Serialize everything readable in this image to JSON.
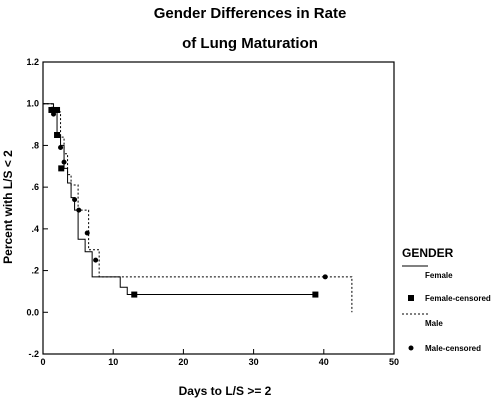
{
  "chart_data": {
    "type": "line",
    "title": "Gender Differences in Rate",
    "subtitle": "of Lung Maturation",
    "xlabel": "Days to L/S >= 2",
    "ylabel": "Percent with L/S < 2",
    "xlim": [
      0,
      50
    ],
    "ylim": [
      -0.2,
      1.2
    ],
    "xticks": [
      0,
      10,
      20,
      30,
      40,
      50
    ],
    "xtick_labels": [
      "0",
      "10",
      "20",
      "30",
      "40",
      "50"
    ],
    "yticks": [
      -0.2,
      0,
      0.2,
      0.4,
      0.6,
      0.8,
      1.0,
      1.2
    ],
    "ytick_labels": [
      "-.2",
      "0.0",
      ".2",
      ".4",
      ".6",
      ".8",
      "1.0",
      "1.2"
    ],
    "grid": false,
    "legend_position": "right",
    "legend_title": "GENDER",
    "series": [
      {
        "name": "Female",
        "style": "solid",
        "steps": [
          [
            0,
            1.0
          ],
          [
            1.5,
            0.96
          ],
          [
            2,
            0.85
          ],
          [
            2.5,
            0.8
          ],
          [
            3,
            0.69
          ],
          [
            3.5,
            0.62
          ],
          [
            4,
            0.55
          ],
          [
            4.5,
            0.49
          ],
          [
            5,
            0.35
          ],
          [
            6,
            0.29
          ],
          [
            7,
            0.17
          ],
          [
            11,
            0.12
          ],
          [
            12,
            0.085
          ],
          [
            39,
            0.085
          ]
        ]
      },
      {
        "name": "Female-censored",
        "marker": "square",
        "points": [
          [
            1.2,
            0.97
          ],
          [
            2.0,
            0.97
          ],
          [
            2.0,
            0.85
          ],
          [
            2.6,
            0.69
          ],
          [
            13,
            0.085
          ],
          [
            38.8,
            0.085
          ]
        ]
      },
      {
        "name": "Male",
        "style": "dotted",
        "steps": [
          [
            0,
            1.0
          ],
          [
            1.3,
            0.96
          ],
          [
            2.5,
            0.84
          ],
          [
            3,
            0.76
          ],
          [
            3.5,
            0.66
          ],
          [
            4,
            0.61
          ],
          [
            5,
            0.49
          ],
          [
            6.5,
            0.3
          ],
          [
            8,
            0.17
          ],
          [
            44,
            0.17
          ],
          [
            44,
            0.0
          ]
        ]
      },
      {
        "name": "Male-censored",
        "marker": "circle",
        "points": [
          [
            1.5,
            0.95
          ],
          [
            2.5,
            0.79
          ],
          [
            3.0,
            0.72
          ],
          [
            4.5,
            0.54
          ],
          [
            5.1,
            0.49
          ],
          [
            6.3,
            0.38
          ],
          [
            7.5,
            0.25
          ],
          [
            40.2,
            0.17
          ]
        ]
      }
    ]
  }
}
